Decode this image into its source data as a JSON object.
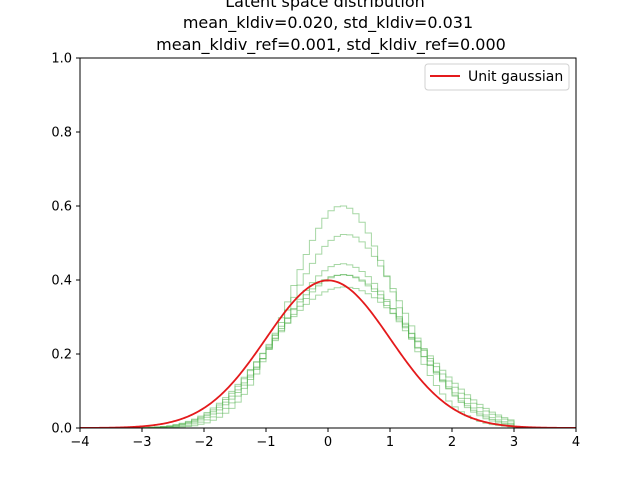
{
  "chart_data": {
    "type": "line",
    "title_lines": [
      "Latent space distribution",
      "mean_kldiv=0.020, std_kldiv=0.031",
      "mean_kldiv_ref=0.001, std_kldiv_ref=0.000"
    ],
    "xlabel": "",
    "ylabel": "",
    "xlim": [
      -4,
      4
    ],
    "ylim": [
      0,
      1.0
    ],
    "x_ticks": [
      -4,
      -3,
      -2,
      -1,
      0,
      1,
      2,
      3,
      4
    ],
    "x_tick_labels": [
      "−4",
      "−3",
      "−2",
      "−1",
      "0",
      "1",
      "2",
      "3",
      "4"
    ],
    "y_ticks": [
      0,
      0.2,
      0.4,
      0.6,
      0.8,
      1.0
    ],
    "y_tick_labels": [
      "0.0",
      "0.2",
      "0.4",
      "0.6",
      "0.8",
      "1.0"
    ],
    "grid": false,
    "legend_position": "top-right",
    "reference_curve": {
      "name": "Unit gaussian",
      "color": "#e41a1c",
      "function": "standard normal pdf",
      "peak": 0.399
    },
    "histograms": {
      "color": "#4daf4a",
      "kind": "step",
      "bin_width": 0.1,
      "bin_start": -3.0,
      "series": [
        {
          "values": [
            0.001,
            0.002,
            0.003,
            0.004,
            0.006,
            0.009,
            0.013,
            0.018,
            0.024,
            0.032,
            0.042,
            0.054,
            0.067,
            0.082,
            0.099,
            0.118,
            0.137,
            0.158,
            0.179,
            0.201,
            0.222,
            0.243,
            0.264,
            0.283,
            0.301,
            0.318,
            0.334,
            0.348,
            0.359,
            0.368,
            0.375,
            0.379,
            0.381,
            0.38,
            0.377,
            0.371,
            0.363,
            0.352,
            0.34,
            0.325,
            0.31,
            0.292,
            0.274,
            0.255,
            0.235,
            0.215,
            0.195,
            0.175,
            0.156,
            0.138,
            0.121,
            0.105,
            0.09,
            0.076,
            0.064,
            0.053,
            0.043,
            0.035,
            0.028,
            0.022
          ]
        },
        {
          "values": [
            0.001,
            0.001,
            0.002,
            0.003,
            0.004,
            0.007,
            0.01,
            0.014,
            0.019,
            0.026,
            0.034,
            0.044,
            0.056,
            0.07,
            0.086,
            0.103,
            0.122,
            0.143,
            0.165,
            0.188,
            0.212,
            0.236,
            0.26,
            0.284,
            0.307,
            0.329,
            0.35,
            0.368,
            0.384,
            0.397,
            0.406,
            0.412,
            0.414,
            0.412,
            0.406,
            0.397,
            0.384,
            0.369,
            0.351,
            0.331,
            0.309,
            0.287,
            0.263,
            0.24,
            0.216,
            0.193,
            0.171,
            0.15,
            0.13,
            0.111,
            0.095,
            0.08,
            0.066,
            0.054,
            0.044,
            0.035,
            0.028,
            0.022,
            0.017,
            0.013
          ]
        },
        {
          "values": [
            0.0,
            0.001,
            0.002,
            0.002,
            0.004,
            0.005,
            0.008,
            0.011,
            0.016,
            0.022,
            0.029,
            0.038,
            0.049,
            0.063,
            0.078,
            0.096,
            0.116,
            0.138,
            0.162,
            0.187,
            0.214,
            0.241,
            0.269,
            0.296,
            0.323,
            0.348,
            0.372,
            0.393,
            0.411,
            0.425,
            0.436,
            0.442,
            0.444,
            0.441,
            0.434,
            0.423,
            0.409,
            0.391,
            0.37,
            0.347,
            0.323,
            0.297,
            0.271,
            0.245,
            0.218,
            0.193,
            0.169,
            0.146,
            0.125,
            0.106,
            0.089,
            0.073,
            0.06,
            0.048,
            0.038,
            0.03,
            0.023,
            0.018,
            0.013,
            0.01
          ]
        },
        {
          "values": [
            0.0,
            0.0,
            0.001,
            0.001,
            0.002,
            0.003,
            0.005,
            0.007,
            0.011,
            0.016,
            0.022,
            0.03,
            0.04,
            0.053,
            0.068,
            0.086,
            0.107,
            0.131,
            0.158,
            0.187,
            0.218,
            0.251,
            0.285,
            0.319,
            0.353,
            0.386,
            0.417,
            0.445,
            0.47,
            0.491,
            0.507,
            0.518,
            0.523,
            0.522,
            0.516,
            0.503,
            0.486,
            0.464,
            0.438,
            0.409,
            0.377,
            0.344,
            0.31,
            0.276,
            0.243,
            0.211,
            0.181,
            0.153,
            0.128,
            0.106,
            0.086,
            0.069,
            0.055,
            0.043,
            0.033,
            0.025,
            0.019,
            0.014,
            0.01,
            0.007
          ]
        },
        {
          "values": [
            0.001,
            0.002,
            0.002,
            0.004,
            0.005,
            0.008,
            0.011,
            0.016,
            0.022,
            0.029,
            0.038,
            0.049,
            0.062,
            0.077,
            0.094,
            0.113,
            0.133,
            0.155,
            0.178,
            0.202,
            0.226,
            0.251,
            0.275,
            0.298,
            0.32,
            0.341,
            0.36,
            0.376,
            0.39,
            0.401,
            0.409,
            0.413,
            0.415,
            0.413,
            0.408,
            0.4,
            0.389,
            0.376,
            0.36,
            0.342,
            0.322,
            0.301,
            0.279,
            0.256,
            0.233,
            0.21,
            0.188,
            0.166,
            0.146,
            0.127,
            0.11,
            0.094,
            0.08,
            0.067,
            0.055,
            0.046,
            0.037,
            0.03,
            0.024,
            0.019
          ]
        },
        {
          "values": [
            0.0,
            0.0,
            0.0,
            0.001,
            0.001,
            0.002,
            0.003,
            0.004,
            0.006,
            0.01,
            0.014,
            0.021,
            0.029,
            0.04,
            0.053,
            0.07,
            0.091,
            0.116,
            0.146,
            0.179,
            0.216,
            0.256,
            0.298,
            0.341,
            0.385,
            0.428,
            0.469,
            0.507,
            0.54,
            0.567,
            0.587,
            0.598,
            0.6,
            0.594,
            0.579,
            0.556,
            0.527,
            0.492,
            0.453,
            0.411,
            0.368,
            0.325,
            0.283,
            0.243,
            0.206,
            0.172,
            0.142,
            0.115,
            0.092,
            0.073,
            0.057,
            0.044,
            0.033,
            0.025,
            0.018,
            0.013,
            0.009,
            0.007,
            0.005,
            0.003
          ]
        }
      ]
    }
  }
}
